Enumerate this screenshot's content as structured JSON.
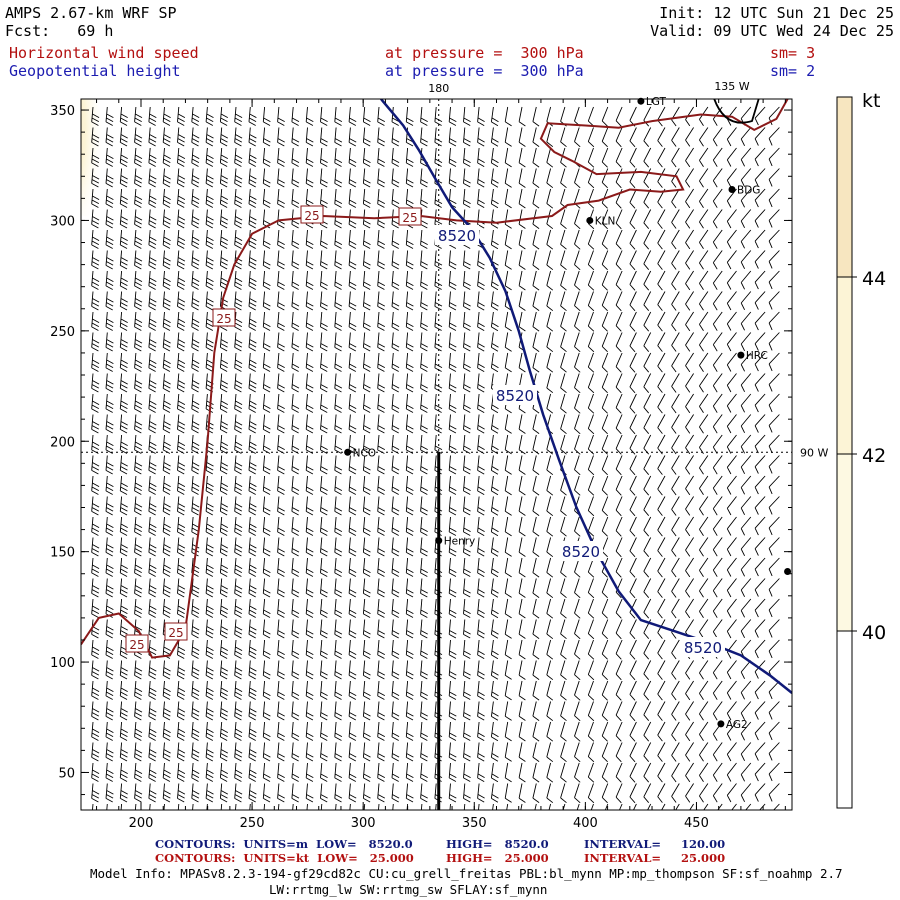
{
  "header": {
    "model_title": "AMPS 2.67-km WRF SP",
    "init": "Init: 12 UTC Sun 21 Dec 25",
    "fcst": "Fcst:   69 h",
    "valid": "Valid: 09 UTC Wed 24 Dec 25",
    "field1": "Horizontal wind speed",
    "field1_level": "at pressure =  300 hPa",
    "field1_sm": "sm= 3",
    "field2": "Geopotential height",
    "field2_level": "at pressure =  300 hPa",
    "field2_sm": "sm= 2"
  },
  "colors": {
    "wind_contour": "#8b1a1a",
    "height_contour": "#101a78",
    "barb": "#000000",
    "shade_40_42": "#fdf9e2",
    "shade_42_44": "#fcf4d6",
    "shade_44_plus": "#f7e6c0"
  },
  "chart_data": {
    "type": "contour",
    "x_ticks": [
      200,
      250,
      300,
      350,
      400,
      450
    ],
    "y_ticks": [
      50,
      100,
      150,
      200,
      250,
      300,
      350
    ],
    "xlim": [
      173,
      493
    ],
    "ylim": [
      33,
      355
    ],
    "grid_labels": {
      "lon_top_180": "180",
      "lon_top_135w": "135 W",
      "lon_right_90w": "90 W"
    },
    "colorbar": {
      "unit": "kt",
      "levels": [
        "40",
        "42",
        "44"
      ]
    },
    "stations": [
      {
        "name": "LGT",
        "x": 425,
        "y": 354
      },
      {
        "name": "BDG",
        "x": 466,
        "y": 314
      },
      {
        "name": "KLN",
        "x": 402,
        "y": 300
      },
      {
        "name": "HRC",
        "x": 470,
        "y": 239
      },
      {
        "name": "NCO",
        "x": 293,
        "y": 195
      },
      {
        "name": "Henry",
        "x": 334,
        "y": 155
      },
      {
        "name": "",
        "x": 491,
        "y": 141
      },
      {
        "name": "AG2",
        "x": 461,
        "y": 72
      }
    ],
    "height_contour": {
      "value": "8520",
      "labels": [
        "8520",
        "8520",
        "8520",
        "8520"
      ],
      "points": [
        [
          308,
          355
        ],
        [
          318,
          343
        ],
        [
          325,
          332
        ],
        [
          333,
          318
        ],
        [
          340,
          306
        ],
        [
          349,
          296
        ],
        [
          357,
          283
        ],
        [
          364,
          268
        ],
        [
          370,
          250
        ],
        [
          375,
          232
        ],
        [
          381,
          212
        ],
        [
          388,
          192
        ],
        [
          396,
          170
        ],
        [
          405,
          150
        ],
        [
          415,
          132
        ],
        [
          425,
          119
        ],
        [
          440,
          114
        ],
        [
          455,
          109
        ],
        [
          470,
          103
        ],
        [
          483,
          94
        ],
        [
          493,
          86
        ]
      ]
    },
    "wind_contour": {
      "value": "25",
      "labels": [
        "25",
        "25",
        "25",
        "25",
        "25"
      ],
      "points": [
        [
          173,
          108
        ],
        [
          181,
          120
        ],
        [
          190,
          122
        ],
        [
          199,
          114
        ],
        [
          205,
          102
        ],
        [
          213,
          103
        ],
        [
          220,
          115
        ],
        [
          226,
          160
        ],
        [
          230,
          200
        ],
        [
          233,
          240
        ],
        [
          237,
          265
        ],
        [
          242,
          280
        ],
        [
          250,
          294
        ],
        [
          262,
          300
        ],
        [
          282,
          302
        ],
        [
          305,
          301
        ],
        [
          326,
          302
        ],
        [
          342,
          300
        ],
        [
          360,
          299
        ],
        [
          385,
          302
        ],
        [
          392,
          307
        ],
        [
          406,
          309
        ],
        [
          420,
          314
        ],
        [
          434,
          313
        ],
        [
          444,
          314
        ],
        [
          441,
          320
        ],
        [
          425,
          322
        ],
        [
          405,
          321
        ],
        [
          394,
          327
        ],
        [
          386,
          331
        ],
        [
          380,
          337
        ],
        [
          383,
          344
        ],
        [
          400,
          343
        ],
        [
          415,
          342
        ],
        [
          430,
          345
        ],
        [
          452,
          348
        ],
        [
          466,
          347
        ],
        [
          476,
          341
        ],
        [
          486,
          346
        ],
        [
          491,
          355
        ]
      ]
    },
    "max_region": {
      "x": 175,
      "y": 330,
      "label": "44+"
    }
  },
  "footer": {
    "c1": "CONTOURS:  UNITS=m  LOW=   8520.0",
    "c1b": "HIGH=   8520.0",
    "c1c": "INTERVAL=     120.00",
    "c2": "CONTOURS:  UNITS=kt  LOW=   25.000",
    "c2b": "HIGH=   25.000",
    "c2c": "INTERVAL=     25.000",
    "model_info": "Model Info: MPASv8.2.3-194-gf29cd82c CU:cu_grell_freitas PBL:bl_mynn MP:mp_thompson SF:sf_noahmp 2.7",
    "model_info2": "LW:rrtmg_lw SW:rrtmg_sw SFLAY:sf_mynn"
  }
}
